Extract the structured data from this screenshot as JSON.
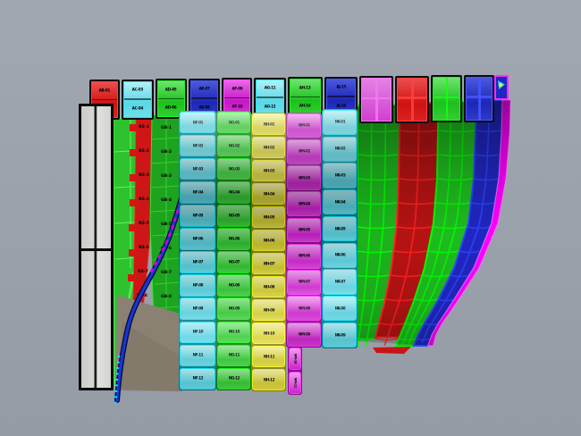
{
  "viewport": {
    "type": "3d-cad-panel-viewport",
    "background": "#9aa1ab"
  },
  "colors": {
    "red": "#cf1212",
    "cyan": "#5ad4e3",
    "green": "#33cc33",
    "blue": "#2026c0",
    "magenta": "#cf23cf",
    "yellow": "#d9d232",
    "pink": "#cf3fcf",
    "edge_magenta": "#ff00ff",
    "gray_bar": "#d6d6d3",
    "shadow": "#8b8173",
    "curve_blue": "#1b35d8",
    "curve_magenta": "#d400d4",
    "curve_cyan_dots": "#00e8ff"
  },
  "header_row": {
    "boxes": [
      {
        "color": "red",
        "labels": [
          "AB-01",
          "AB-02"
        ]
      },
      {
        "color": "cyan",
        "labels": [
          "AC-03",
          "AC-04"
        ]
      },
      {
        "color": "green",
        "labels": [
          "AD-05",
          "AD-06"
        ]
      },
      {
        "color": "blue",
        "labels": [
          "AE-07",
          "AE-08"
        ]
      },
      {
        "color": "magenta",
        "labels": [
          "AF-09",
          "AF-10"
        ]
      },
      {
        "color": "cyan",
        "labels": [
          "AG-11",
          "AG-12"
        ]
      },
      {
        "color": "green",
        "labels": [
          "AH-13",
          "AH-14"
        ]
      },
      {
        "color": "blue",
        "labels": [
          "AJ-15",
          "AJ-16"
        ]
      },
      {
        "color": "pink",
        "labels": []
      },
      {
        "color": "red",
        "labels": []
      },
      {
        "color": "green",
        "labels": []
      },
      {
        "color": "blue",
        "labels": []
      }
    ],
    "tip_marker_icon": "orientation-marker-icon"
  },
  "panel_columns": [
    {
      "id": "strake-cyan-1",
      "color": "cyan",
      "labels": [
        "NF-01",
        "NF-02",
        "NF-03",
        "NF-04",
        "NF-05",
        "NF-06",
        "NF-07",
        "NF-08",
        "NF-09",
        "NF-10",
        "NF-11",
        "NF-12"
      ]
    },
    {
      "id": "strake-green-1",
      "color": "green",
      "labels": [
        "NG-01",
        "NG-02",
        "NG-03",
        "NG-04",
        "NG-05",
        "NG-06",
        "NG-07",
        "NG-08",
        "NG-09",
        "NG-10",
        "NG-11",
        "NG-12"
      ]
    },
    {
      "id": "strake-yellow-1",
      "color": "yellow",
      "labels": [
        "NH-01",
        "NH-02",
        "NH-03",
        "NH-04",
        "NH-05",
        "NH-06",
        "NH-07",
        "NH-08",
        "NH-09",
        "NH-10",
        "NH-11",
        "NH-12"
      ]
    },
    {
      "id": "strake-magenta-1",
      "color": "magenta",
      "labels": [
        "NM-01",
        "NM-02",
        "NM-03",
        "NM-04",
        "NM-05",
        "NM-06",
        "NM-07",
        "NM-08",
        "NM-09"
      ]
    },
    {
      "id": "strake-cyan-2",
      "color": "cyan",
      "labels": [
        "NK-01",
        "NK-02",
        "NK-03",
        "NK-04",
        "NK-05",
        "NK-06",
        "NK-07",
        "NK-08",
        "NK-09"
      ]
    }
  ],
  "magenta_tail_labels": [
    "NM-10",
    "NM-11"
  ],
  "left_red_strip_labels": [
    "RS-1",
    "RS-2",
    "RS-3",
    "RS-4",
    "RS-5",
    "RS-6",
    "RS-7",
    "RS-8",
    "RS-9"
  ],
  "left_green_strip_labels": [
    "GB-1",
    "GB-2",
    "GB-3",
    "GB-4",
    "GB-5",
    "GB-6",
    "GB-7",
    "GB-8"
  ]
}
